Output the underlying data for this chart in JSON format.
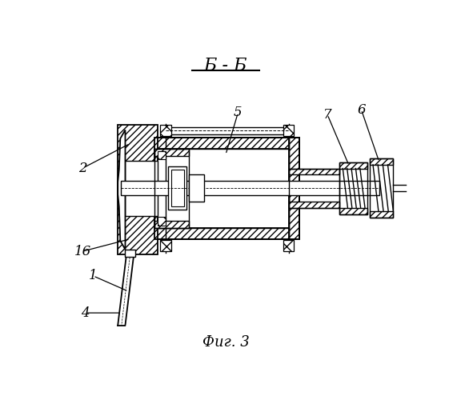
{
  "title": "Б - Б",
  "caption": "Фиг. 3",
  "bg_color": "#ffffff",
  "line_color": "#000000"
}
